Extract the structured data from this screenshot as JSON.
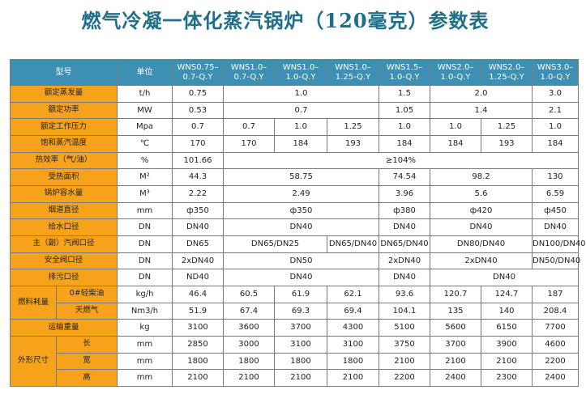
{
  "title": "燃气冷凝一体化蒸汽锅炉（120毫克）参数表",
  "table": {
    "header": {
      "model_label": "型号",
      "unit_label": "单位",
      "models": [
        "WNS0.75–0.7-Q.Y",
        "WNS1.0–0.7-Q.Y",
        "WNS1.0–1.0-Q.Y",
        "WNS1.0–1.25-Q.Y",
        "WNS1.5–1.0-Q.Y",
        "WNS2.0–1.0-Q.Y",
        "WNS2.0–1.25-Q.Y",
        "WNS3.0–1.0-Q.Y"
      ]
    },
    "rated_evaporation": {
      "label": "额定蒸发量",
      "unit": "t/h",
      "v1": "0.75",
      "v2": "1.0",
      "v3": "1.5",
      "v4": "2.0",
      "v5": "3.0"
    },
    "rated_power": {
      "label": "额定功率",
      "unit": "MW",
      "v1": "0.53",
      "v2": "0.7",
      "v3": "1.05",
      "v4": "1.4",
      "v5": "2.1"
    },
    "rated_pressure": {
      "label": "额定工作压力",
      "unit": "Mpa",
      "values": [
        "0.7",
        "0.7",
        "1.0",
        "1.25",
        "1.0",
        "1.0",
        "1.25",
        "1.0"
      ]
    },
    "steam_temp": {
      "label": "饱和蒸汽温度",
      "unit": "℃",
      "values": [
        "170",
        "170",
        "184",
        "193",
        "184",
        "184",
        "193",
        "184"
      ]
    },
    "efficiency": {
      "label": "热效率（气/油）",
      "unit": "%",
      "v1": "101.66",
      "v2": "≥104%"
    },
    "heating_area": {
      "label": "受热面积",
      "unit": "M²",
      "v1": "44.3",
      "v2": "58.75",
      "v3": "74.54",
      "v4": "98.2",
      "v5": "130"
    },
    "water_capacity": {
      "label": "锅炉容水量",
      "unit": "M³",
      "v1": "2.22",
      "v2": "2.49",
      "v3": "3.96",
      "v4": "5.6",
      "v5": "6.59"
    },
    "flue_diameter": {
      "label": "烟道直径",
      "unit": "mm",
      "v1": "ф350",
      "v2": "ф350",
      "v3": "ф380",
      "v4": "ф420",
      "v5": "ф450"
    },
    "feed_water": {
      "label": "给水口径",
      "unit": "DN",
      "v1": "DN40",
      "v2": "DN40",
      "v3": "DN40",
      "v4": "DN40",
      "v5": "DN40"
    },
    "main_valve": {
      "label": "主（副）汽阀口径",
      "unit": "DN",
      "v1": "DN65",
      "v2": "DN65/DN25",
      "v3": "DN65/DN40",
      "v4": "DN65/DN40",
      "v5": "DN80/DN40",
      "v6": "DN100/DN40"
    },
    "safety_valve": {
      "label": "安全阀口径",
      "unit": "DN",
      "v1": "2xDN40",
      "v2": "DN50",
      "v3": "2xDN40",
      "v4": "2xDN40",
      "v5": "DN50/DN40"
    },
    "drain": {
      "label": "排污口径",
      "unit": "DN",
      "v1": "ND40",
      "v2": "DN40",
      "v3": "DN40",
      "v4": "DN40"
    },
    "fuel_consumption": {
      "label": "燃料耗量",
      "diesel": {
        "label": "0#轻柴油",
        "unit": "kg/h",
        "values": [
          "46.4",
          "60.5",
          "61.9",
          "62.1",
          "93.6",
          "120.7",
          "124.7",
          "187"
        ]
      },
      "gas": {
        "label": "天燃气",
        "unit": "Nm3/h",
        "values": [
          "51.9",
          "67.4",
          "69.3",
          "69.4",
          "104.1",
          "135",
          "140",
          "208.4"
        ]
      }
    },
    "transport_weight": {
      "label": "运输重量",
      "unit": "kg",
      "values": [
        "3100",
        "3600",
        "3700",
        "4300",
        "5100",
        "5600",
        "6150",
        "7700"
      ]
    },
    "dimensions": {
      "label": "外形尺寸",
      "length": {
        "label": "长",
        "unit": "mm",
        "values": [
          "2850",
          "3000",
          "3100",
          "3100",
          "3750",
          "3700",
          "3900",
          "4600"
        ]
      },
      "width": {
        "label": "宽",
        "unit": "mm",
        "values": [
          "1800",
          "1800",
          "1800",
          "1800",
          "2100",
          "2100",
          "2100",
          "2200"
        ]
      },
      "height": {
        "label": "高",
        "unit": "mm",
        "values": [
          "2100",
          "2100",
          "2100",
          "2100",
          "2200",
          "2400",
          "2300",
          "2400"
        ]
      }
    }
  }
}
